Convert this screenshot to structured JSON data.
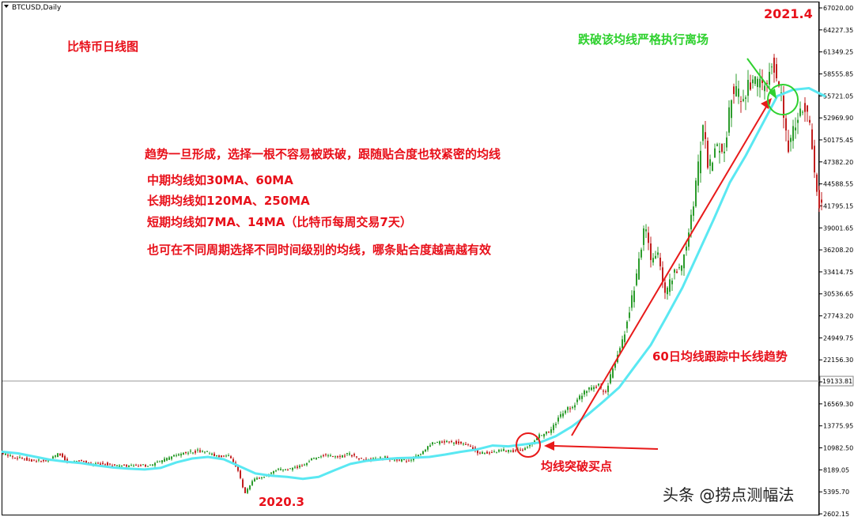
{
  "chart_data": {
    "type": "candlestick",
    "symbol": "BTCUSD,Daily",
    "title": "比特币日线图",
    "ylim": [
      2602.15,
      67020.0
    ],
    "y_ticks": [
      "67020.00",
      "64227.35",
      "61349.25",
      "58555.85",
      "55721.05",
      "52969.90",
      "50175.45",
      "47382.20",
      "44588.55",
      "41795.15",
      "39001.65",
      "36208.20",
      "33414.75",
      "30536.65",
      "27743.20",
      "24949.75",
      "22156.30",
      "19133.81",
      "16569.30",
      "13775.95",
      "10982.50",
      "8189.05",
      "5395.70",
      "2602.15"
    ],
    "current_price": "19133.81",
    "x_labels": [
      {
        "text": "2020.3",
        "date": "2020-03"
      },
      {
        "text": "2021.4",
        "date": "2021-04"
      }
    ],
    "series": [
      {
        "name": "60日均线",
        "type": "line",
        "color": "#5ae8f2",
        "values": [
          [
            0,
            10500
          ],
          [
            20,
            10300
          ],
          [
            40,
            9900
          ],
          [
            60,
            9500
          ],
          [
            80,
            9250
          ],
          [
            100,
            9050
          ],
          [
            120,
            8750
          ],
          [
            140,
            8500
          ],
          [
            160,
            8350
          ],
          [
            180,
            8250
          ],
          [
            200,
            8450
          ],
          [
            220,
            9150
          ],
          [
            240,
            9650
          ],
          [
            260,
            9850
          ],
          [
            280,
            9550
          ],
          [
            300,
            8650
          ],
          [
            320,
            7750
          ],
          [
            340,
            7450
          ],
          [
            360,
            7300
          ],
          [
            380,
            7050
          ],
          [
            400,
            7300
          ],
          [
            420,
            8150
          ],
          [
            440,
            8950
          ],
          [
            460,
            9350
          ],
          [
            480,
            9550
          ],
          [
            500,
            9700
          ],
          [
            520,
            9750
          ],
          [
            540,
            9850
          ],
          [
            560,
            10150
          ],
          [
            580,
            10500
          ],
          [
            600,
            10800
          ],
          [
            620,
            11300
          ],
          [
            640,
            11200
          ],
          [
            660,
            11450
          ],
          [
            680,
            11700
          ],
          [
            700,
            12500
          ],
          [
            720,
            13700
          ],
          [
            740,
            15200
          ],
          [
            760,
            16900
          ],
          [
            780,
            18700
          ],
          [
            800,
            21400
          ],
          [
            820,
            24100
          ],
          [
            840,
            27700
          ],
          [
            860,
            31400
          ],
          [
            880,
            35800
          ],
          [
            900,
            40200
          ],
          [
            920,
            44800
          ],
          [
            940,
            48200
          ],
          [
            960,
            52000
          ],
          [
            980,
            55800
          ],
          [
            1000,
            56600
          ],
          [
            1020,
            56800
          ],
          [
            1040,
            55800
          ]
        ]
      },
      {
        "name": "BTCUSD",
        "type": "candles",
        "up_color": "#2c9c2c",
        "down_color": "#c21e1e",
        "points": [
          [
            0,
            10300
          ],
          [
            15,
            9900
          ],
          [
            25,
            9700
          ],
          [
            40,
            9400
          ],
          [
            60,
            9300
          ],
          [
            73,
            10300
          ],
          [
            85,
            9100
          ],
          [
            100,
            9500
          ],
          [
            115,
            8900
          ],
          [
            130,
            9000
          ],
          [
            150,
            8700
          ],
          [
            170,
            8700
          ],
          [
            190,
            8800
          ],
          [
            205,
            9400
          ],
          [
            220,
            10000
          ],
          [
            235,
            10400
          ],
          [
            255,
            10700
          ],
          [
            270,
            10000
          ],
          [
            290,
            9900
          ],
          [
            300,
            8200
          ],
          [
            308,
            5100
          ],
          [
            320,
            7000
          ],
          [
            335,
            7400
          ],
          [
            350,
            8200
          ],
          [
            365,
            8300
          ],
          [
            380,
            8700
          ],
          [
            395,
            9700
          ],
          [
            410,
            10100
          ],
          [
            425,
            9800
          ],
          [
            440,
            10300
          ],
          [
            455,
            9500
          ],
          [
            470,
            9500
          ],
          [
            485,
            9800
          ],
          [
            500,
            9400
          ],
          [
            515,
            9400
          ],
          [
            530,
            10100
          ],
          [
            545,
            11500
          ],
          [
            560,
            11800
          ],
          [
            575,
            11700
          ],
          [
            590,
            11400
          ],
          [
            605,
            10300
          ],
          [
            620,
            10400
          ],
          [
            635,
            10700
          ],
          [
            650,
            10600
          ],
          [
            665,
            11000
          ],
          [
            680,
            12500
          ],
          [
            695,
            13100
          ],
          [
            710,
            15500
          ],
          [
            725,
            16500
          ],
          [
            740,
            18500
          ],
          [
            755,
            19000
          ],
          [
            765,
            18000
          ],
          [
            775,
            21500
          ],
          [
            785,
            24000
          ],
          [
            795,
            28500
          ],
          [
            805,
            33500
          ],
          [
            815,
            39500
          ],
          [
            822,
            34500
          ],
          [
            830,
            36000
          ],
          [
            840,
            30500
          ],
          [
            850,
            33000
          ],
          [
            860,
            34000
          ],
          [
            870,
            38500
          ],
          [
            880,
            45000
          ],
          [
            888,
            52000
          ],
          [
            895,
            46500
          ],
          [
            905,
            49500
          ],
          [
            915,
            48800
          ],
          [
            925,
            57000
          ],
          [
            935,
            55500
          ],
          [
            945,
            57000
          ],
          [
            955,
            57500
          ],
          [
            965,
            56500
          ],
          [
            975,
            60000
          ],
          [
            980,
            58800
          ],
          [
            988,
            55500
          ],
          [
            995,
            49000
          ],
          [
            1005,
            52000
          ],
          [
            1015,
            55000
          ],
          [
            1022,
            53000
          ],
          [
            1028,
            47000
          ],
          [
            1035,
            42000
          ]
        ]
      }
    ],
    "annotations": {
      "title": "比特币日线图",
      "lines": [
        "趋势一旦形成，选择一根不容易被跌破，跟随贴合度也较紧密的均线",
        "中期均线如30MA、60MA",
        "长期均线如120MA、250MA",
        "短期均线如7MA、14MA（比特币每周交易7天）",
        "也可在不同周期选择不同时间级别的均线，哪条贴合度越高越有效"
      ],
      "breakout": "均线突破买点",
      "ma_trend": "60日均线跟踪中长线趋势",
      "exit": "跌破该均线严格执行离场",
      "peak_date": "2021.4",
      "low_date": "2020.3"
    },
    "colors": {
      "annotation_red": "#e8101a",
      "annotation_green": "#2fd12f",
      "ma_line": "#5ae8f2"
    },
    "watermark": "头条 @捞点测幅法"
  }
}
